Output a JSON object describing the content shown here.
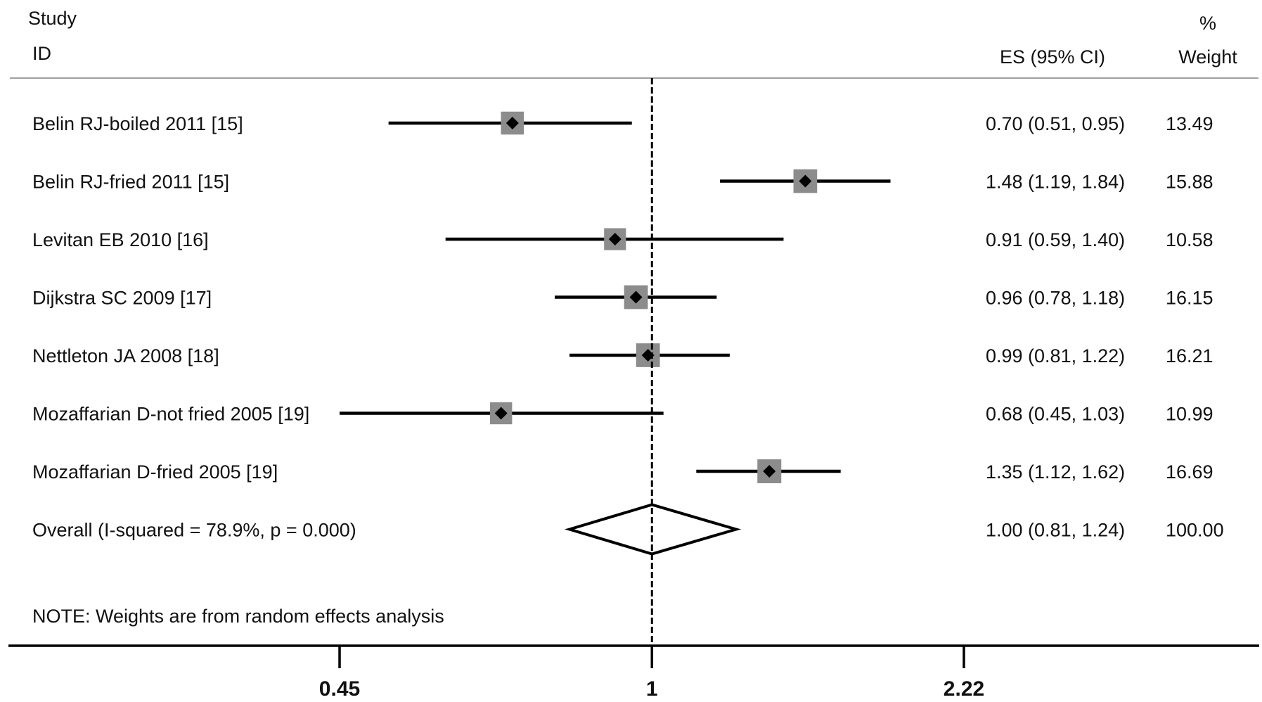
{
  "chart_data": {
    "type": "forest",
    "headers": {
      "study": "Study",
      "id": "ID",
      "es": "ES (95% CI)",
      "weight_pct": "%",
      "weight": "Weight"
    },
    "studies": [
      {
        "label": "Belin RJ-boiled 2011 [15]",
        "es": 0.7,
        "lo": 0.51,
        "hi": 0.95,
        "es_text": "0.70 (0.51, 0.95)",
        "weight": 13.49,
        "weight_text": "13.49"
      },
      {
        "label": "Belin RJ-fried 2011 [15]",
        "es": 1.48,
        "lo": 1.19,
        "hi": 1.84,
        "es_text": "1.48 (1.19, 1.84)",
        "weight": 15.88,
        "weight_text": "15.88"
      },
      {
        "label": "Levitan EB 2010 [16]",
        "es": 0.91,
        "lo": 0.59,
        "hi": 1.4,
        "es_text": "0.91 (0.59, 1.40)",
        "weight": 10.58,
        "weight_text": "10.58"
      },
      {
        "label": "Dijkstra SC 2009 [17]",
        "es": 0.96,
        "lo": 0.78,
        "hi": 1.18,
        "es_text": "0.96 (0.78, 1.18)",
        "weight": 16.15,
        "weight_text": "16.15"
      },
      {
        "label": "Nettleton JA 2008 [18]",
        "es": 0.99,
        "lo": 0.81,
        "hi": 1.22,
        "es_text": "0.99 (0.81, 1.22)",
        "weight": 16.21,
        "weight_text": "16.21"
      },
      {
        "label": "Mozaffarian D-not fried 2005 [19]",
        "es": 0.68,
        "lo": 0.45,
        "hi": 1.03,
        "es_text": "0.68 (0.45, 1.03)",
        "weight": 10.99,
        "weight_text": "10.99"
      },
      {
        "label": "Mozaffarian D-fried 2005 [19]",
        "es": 1.35,
        "lo": 1.12,
        "hi": 1.62,
        "es_text": "1.35 (1.12, 1.62)",
        "weight": 16.69,
        "weight_text": "16.69"
      }
    ],
    "overall": {
      "label": "Overall  (I-squared = 78.9%, p = 0.000)",
      "es": 1.0,
      "lo": 0.81,
      "hi": 1.24,
      "es_text": "1.00 (0.81, 1.24)",
      "weight_text": "100.00"
    },
    "note": "NOTE: Weights are from random effects analysis",
    "x_scale": "log",
    "xlim": [
      0.45,
      2.22
    ],
    "xticks": [
      0.45,
      1,
      2.22
    ],
    "xtick_labels": [
      "0.45",
      "1",
      "2.22"
    ],
    "null_line": 1,
    "colors": {
      "line": "#000000",
      "box": "#8c8c8c",
      "point": "#000000",
      "rule": "#a0a0a0"
    }
  }
}
